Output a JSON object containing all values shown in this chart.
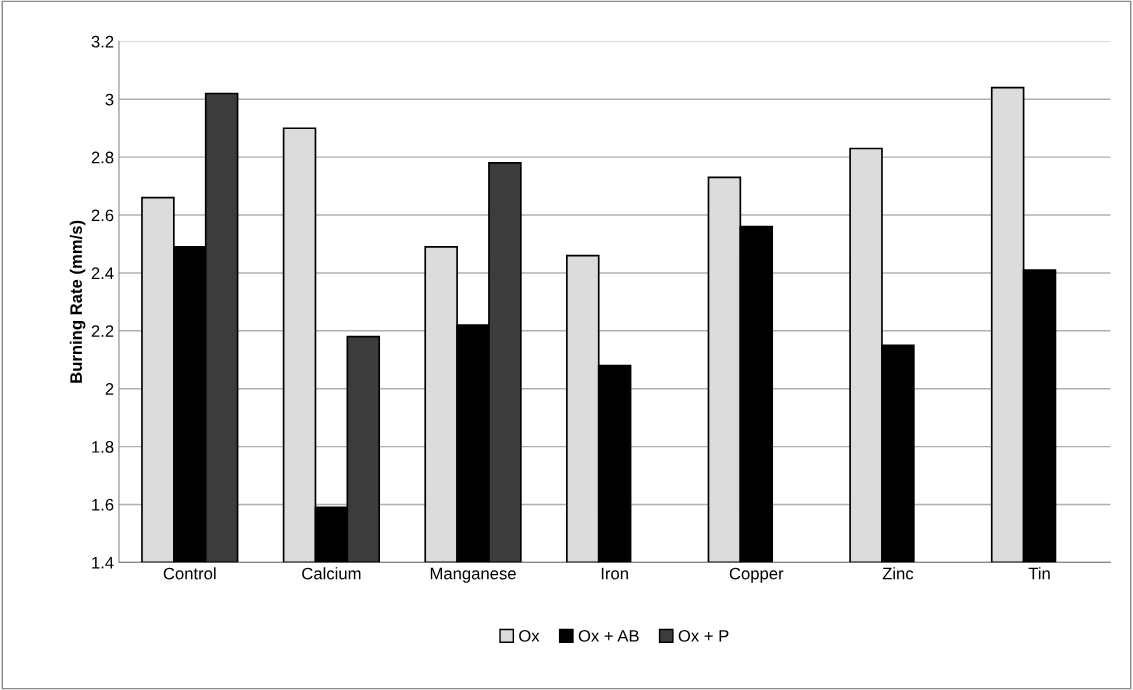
{
  "chart_data": {
    "type": "bar",
    "ylabel": "Burning Rate (mm/s)",
    "categories": [
      "Control",
      "Calcium",
      "Manganese",
      "Iron",
      "Copper",
      "Zinc",
      "Tin"
    ],
    "series": [
      {
        "name": "Ox",
        "color": "#dcdcdc",
        "values": [
          2.66,
          2.9,
          2.49,
          2.46,
          2.73,
          2.83,
          3.04
        ]
      },
      {
        "name": "Ox + AB",
        "color": "#000000",
        "values": [
          2.49,
          1.59,
          2.22,
          2.08,
          2.56,
          2.15,
          2.41
        ]
      },
      {
        "name": "Ox + P",
        "color": "#3c3c3c",
        "values": [
          3.02,
          2.18,
          2.78,
          null,
          null,
          null,
          null
        ]
      }
    ],
    "ylim": [
      1.4,
      3.2
    ],
    "yticks": [
      1.4,
      1.6,
      1.8,
      2,
      2.2,
      2.4,
      2.6,
      2.8,
      3,
      3.2
    ],
    "grid": "y",
    "legend": "bottom"
  }
}
